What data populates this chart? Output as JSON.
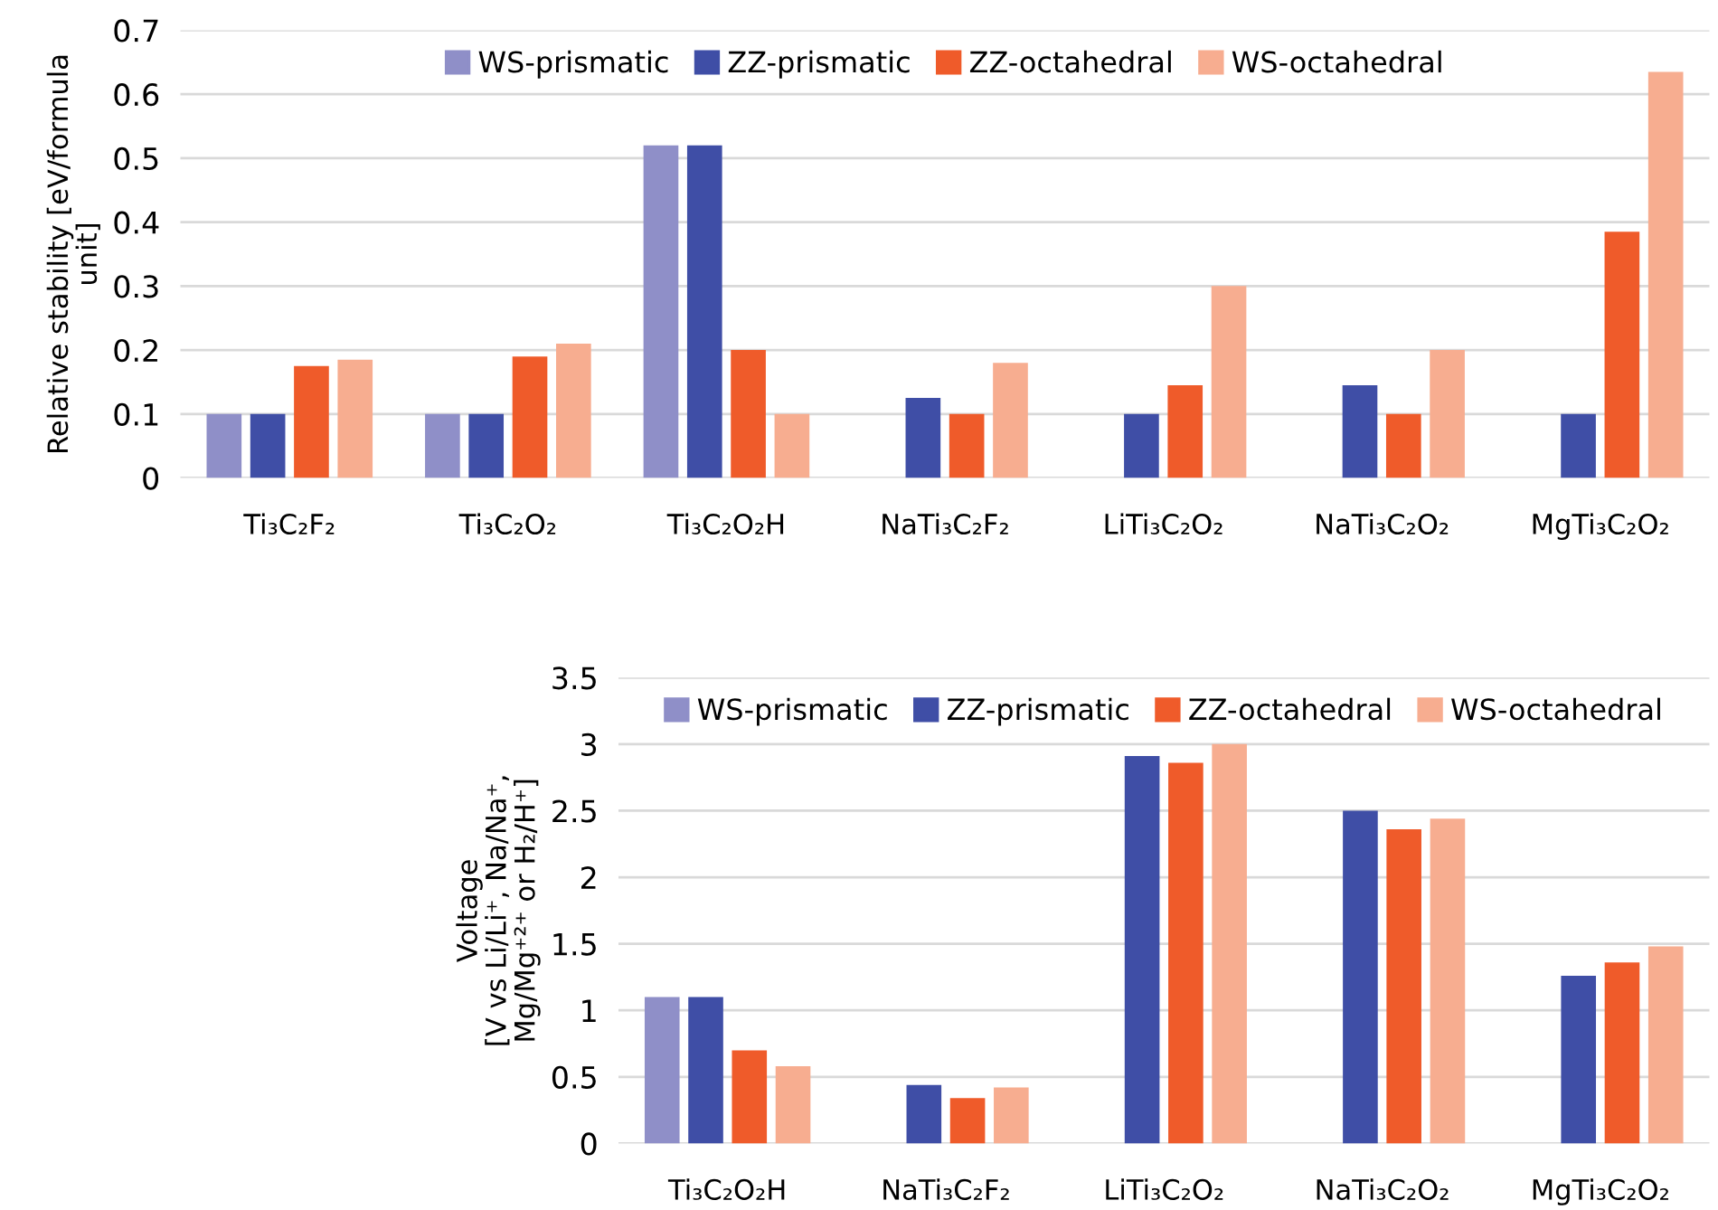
{
  "chart_data": [
    {
      "type": "bar",
      "ylabel": "Relative stability [eV/formula\nunit]",
      "categories": [
        "Ti₃C₂F₂",
        "Ti₃C₂O₂",
        "Ti₃C₂O₂H",
        "NaTi₃C₂F₂",
        "LiTi₃C₂O₂",
        "NaTi₃C₂O₂",
        "MgTi₃C₂O₂"
      ],
      "series": [
        {
          "name": "WS-prismatic",
          "color": "#8f8fc8",
          "values": [
            0.1,
            0.1,
            0.52,
            null,
            null,
            null,
            null
          ]
        },
        {
          "name": "ZZ-prismatic",
          "color": "#3f4ea6",
          "values": [
            0.1,
            0.1,
            0.52,
            0.125,
            0.1,
            0.145,
            0.1
          ]
        },
        {
          "name": "ZZ-octahedral",
          "color": "#ef5b2a",
          "values": [
            0.175,
            0.19,
            0.2,
            0.1,
            0.145,
            0.1,
            0.385
          ]
        },
        {
          "name": "WS-octahedral",
          "color": "#f7ad90",
          "values": [
            0.185,
            0.21,
            0.1,
            0.18,
            0.3,
            0.2,
            0.635
          ]
        }
      ],
      "ylim": [
        0,
        0.7
      ],
      "yticks": [
        0,
        0.1,
        0.2,
        0.3,
        0.4,
        0.5,
        0.6,
        0.7
      ],
      "grid": "y",
      "legend": "top"
    },
    {
      "type": "bar",
      "ylabel": "Voltage\n[V vs Li/Li⁺, Na/Na⁺,\nMg/Mg⁺²⁺ or H₂/H⁺]",
      "categories": [
        "Ti₃C₂O₂H",
        "NaTi₃C₂F₂",
        "LiTi₃C₂O₂",
        "NaTi₃C₂O₂",
        "MgTi₃C₂O₂"
      ],
      "series": [
        {
          "name": "WS-prismatic",
          "color": "#8f8fc8",
          "values": [
            1.1,
            null,
            null,
            null,
            null
          ]
        },
        {
          "name": "ZZ-prismatic",
          "color": "#3f4ea6",
          "values": [
            1.1,
            0.44,
            2.91,
            2.5,
            1.26
          ]
        },
        {
          "name": "ZZ-octahedral",
          "color": "#ef5b2a",
          "values": [
            0.7,
            0.34,
            2.86,
            2.36,
            1.36
          ]
        },
        {
          "name": "WS-octahedral",
          "color": "#f7ad90",
          "values": [
            0.58,
            0.42,
            3.0,
            2.44,
            1.48
          ]
        }
      ],
      "ylim": [
        0,
        3.5
      ],
      "yticks": [
        0,
        0.5,
        1,
        1.5,
        2,
        2.5,
        3,
        3.5
      ],
      "grid": "y",
      "legend": "top"
    }
  ]
}
